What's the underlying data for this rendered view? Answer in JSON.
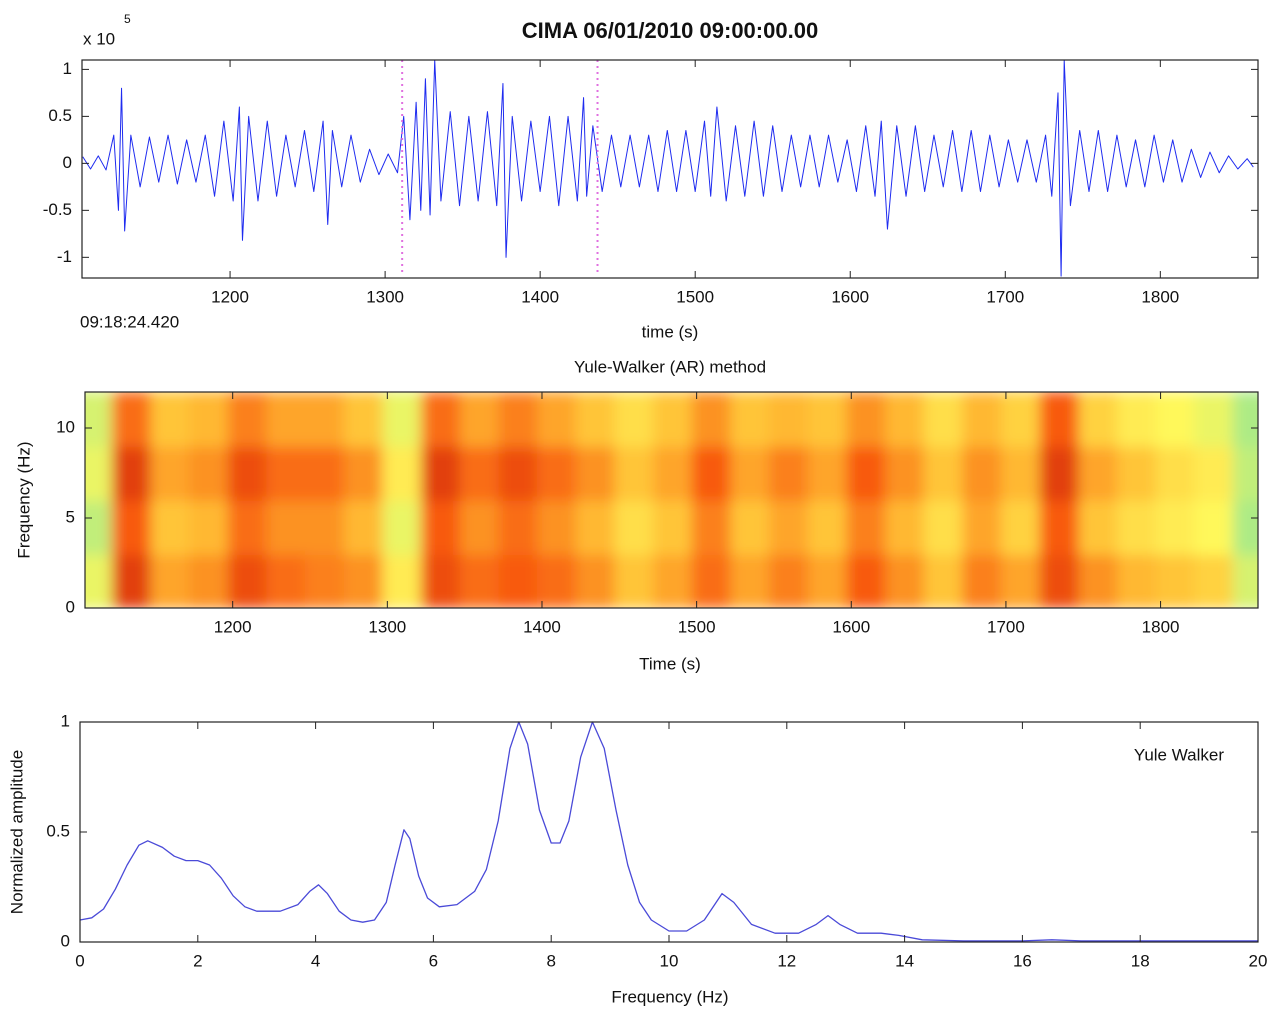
{
  "chart_data": [
    {
      "type": "line",
      "title": "CIMA 06/01/2010  09:00:00.00",
      "y_multiplier": {
        "base": "x 10",
        "power": "5"
      },
      "start_time": "09:18:24.420",
      "xlabel": "time (s)",
      "color": "#1f2cf0",
      "xlim": [
        1104.5,
        1863
      ],
      "ylim": [
        -1.22,
        1.1
      ],
      "xticks": [
        1200,
        1300,
        1400,
        1500,
        1600,
        1700,
        1800
      ],
      "yticks": [
        -1,
        -0.5,
        0,
        0.5,
        1
      ],
      "markers": [
        1311,
        1437
      ],
      "marker_color": "#e070e0",
      "x": [
        1105,
        1110,
        1115,
        1120,
        1125,
        1128,
        1130,
        1132,
        1136,
        1142,
        1148,
        1154,
        1160,
        1166,
        1172,
        1178,
        1184,
        1190,
        1196,
        1202,
        1206,
        1208,
        1212,
        1218,
        1224,
        1230,
        1236,
        1242,
        1248,
        1254,
        1260,
        1263,
        1266,
        1272,
        1278,
        1284,
        1290,
        1296,
        1302,
        1308,
        1312,
        1316,
        1320,
        1323,
        1326,
        1329,
        1332,
        1336,
        1342,
        1348,
        1354,
        1360,
        1366,
        1372,
        1376,
        1378,
        1382,
        1388,
        1394,
        1400,
        1406,
        1412,
        1418,
        1424,
        1428,
        1430,
        1434,
        1440,
        1446,
        1452,
        1458,
        1464,
        1470,
        1476,
        1482,
        1488,
        1494,
        1500,
        1506,
        1510,
        1514,
        1520,
        1526,
        1532,
        1538,
        1544,
        1550,
        1556,
        1562,
        1568,
        1574,
        1580,
        1586,
        1592,
        1598,
        1604,
        1610,
        1616,
        1620,
        1624,
        1630,
        1636,
        1642,
        1648,
        1654,
        1660,
        1666,
        1672,
        1678,
        1684,
        1690,
        1696,
        1702,
        1708,
        1714,
        1720,
        1726,
        1730,
        1734,
        1736,
        1738,
        1742,
        1748,
        1754,
        1760,
        1766,
        1772,
        1778,
        1784,
        1790,
        1796,
        1802,
        1808,
        1814,
        1820,
        1826,
        1832,
        1838,
        1844,
        1850,
        1856,
        1860
      ],
      "values": [
        0.07,
        -0.06,
        0.08,
        -0.07,
        0.3,
        -0.5,
        0.8,
        -0.72,
        0.3,
        -0.25,
        0.28,
        -0.2,
        0.3,
        -0.22,
        0.25,
        -0.2,
        0.3,
        -0.35,
        0.45,
        -0.4,
        0.6,
        -0.82,
        0.5,
        -0.4,
        0.45,
        -0.35,
        0.3,
        -0.25,
        0.35,
        -0.3,
        0.45,
        -0.65,
        0.35,
        -0.25,
        0.3,
        -0.2,
        0.15,
        -0.12,
        0.1,
        -0.1,
        0.5,
        -0.6,
        0.65,
        -0.5,
        0.9,
        -0.55,
        1.1,
        -0.4,
        0.55,
        -0.45,
        0.5,
        -0.4,
        0.55,
        -0.45,
        0.85,
        -1.0,
        0.5,
        -0.4,
        0.45,
        -0.3,
        0.5,
        -0.45,
        0.5,
        -0.4,
        0.7,
        -0.35,
        0.4,
        -0.3,
        0.3,
        -0.25,
        0.3,
        -0.25,
        0.3,
        -0.3,
        0.35,
        -0.3,
        0.35,
        -0.3,
        0.45,
        -0.35,
        0.6,
        -0.4,
        0.4,
        -0.35,
        0.45,
        -0.35,
        0.4,
        -0.3,
        0.3,
        -0.25,
        0.3,
        -0.25,
        0.3,
        -0.2,
        0.25,
        -0.3,
        0.4,
        -0.35,
        0.45,
        -0.7,
        0.4,
        -0.35,
        0.4,
        -0.3,
        0.3,
        -0.25,
        0.35,
        -0.3,
        0.35,
        -0.3,
        0.3,
        -0.25,
        0.25,
        -0.2,
        0.25,
        -0.2,
        0.3,
        -0.35,
        0.75,
        -1.2,
        1.1,
        -0.45,
        0.35,
        -0.3,
        0.35,
        -0.3,
        0.3,
        -0.25,
        0.25,
        -0.25,
        0.3,
        -0.2,
        0.25,
        -0.2,
        0.15,
        -0.15,
        0.12,
        -0.1,
        0.08,
        -0.06,
        0.05,
        -0.04
      ]
    },
    {
      "type": "heatmap",
      "title": "Yule-Walker (AR) method",
      "xlabel": "Time (s)",
      "ylabel": "Frequency (Hz)",
      "xlim": [
        1104.5,
        1863
      ],
      "ylim": [
        0,
        12
      ],
      "xticks": [
        1200,
        1300,
        1400,
        1500,
        1600,
        1700,
        1800
      ],
      "yticks": [
        0,
        5,
        10
      ],
      "colormap": [
        "#98e890",
        "#fff85a",
        "#ffb830",
        "#f85a10",
        "#c01808"
      ],
      "x": [
        1110,
        1135,
        1160,
        1185,
        1210,
        1235,
        1260,
        1285,
        1310,
        1335,
        1360,
        1385,
        1410,
        1435,
        1460,
        1485,
        1510,
        1535,
        1560,
        1585,
        1610,
        1635,
        1660,
        1685,
        1710,
        1735,
        1760,
        1785,
        1810,
        1835,
        1860
      ],
      "y": [
        1.5,
        4.5,
        7.5,
        10.5
      ],
      "z": [
        [
          0.2,
          0.85,
          0.55,
          0.6,
          0.8,
          0.7,
          0.65,
          0.6,
          0.3,
          0.8,
          0.7,
          0.75,
          0.7,
          0.6,
          0.45,
          0.55,
          0.7,
          0.55,
          0.65,
          0.55,
          0.75,
          0.6,
          0.45,
          0.65,
          0.55,
          0.8,
          0.6,
          0.5,
          0.45,
          0.4,
          0.15
        ],
        [
          0.1,
          0.75,
          0.45,
          0.5,
          0.7,
          0.6,
          0.6,
          0.5,
          0.2,
          0.75,
          0.6,
          0.7,
          0.6,
          0.5,
          0.35,
          0.45,
          0.65,
          0.45,
          0.55,
          0.45,
          0.65,
          0.5,
          0.35,
          0.55,
          0.4,
          0.75,
          0.45,
          0.35,
          0.3,
          0.25,
          0.05
        ],
        [
          0.2,
          0.85,
          0.55,
          0.6,
          0.8,
          0.7,
          0.7,
          0.6,
          0.3,
          0.85,
          0.7,
          0.8,
          0.7,
          0.6,
          0.45,
          0.55,
          0.75,
          0.55,
          0.65,
          0.55,
          0.75,
          0.6,
          0.45,
          0.6,
          0.5,
          0.85,
          0.55,
          0.45,
          0.35,
          0.3,
          0.1
        ],
        [
          0.15,
          0.7,
          0.45,
          0.5,
          0.65,
          0.55,
          0.55,
          0.45,
          0.2,
          0.7,
          0.55,
          0.65,
          0.55,
          0.45,
          0.35,
          0.45,
          0.6,
          0.45,
          0.5,
          0.45,
          0.6,
          0.5,
          0.35,
          0.5,
          0.4,
          0.75,
          0.4,
          0.3,
          0.25,
          0.2,
          0.05
        ]
      ]
    },
    {
      "type": "line",
      "xlabel": "Frequency (Hz)",
      "ylabel": "Normalized amplitude",
      "xlim": [
        0,
        20
      ],
      "ylim": [
        0,
        1
      ],
      "xticks": [
        0,
        2,
        4,
        6,
        8,
        10,
        12,
        14,
        16,
        18,
        20
      ],
      "yticks": [
        0,
        0.5,
        1
      ],
      "legend": "upper right",
      "x": [
        0,
        0.2,
        0.4,
        0.6,
        0.8,
        1.0,
        1.15,
        1.4,
        1.6,
        1.8,
        2.0,
        2.2,
        2.4,
        2.6,
        2.8,
        3.0,
        3.4,
        3.7,
        3.9,
        4.05,
        4.2,
        4.4,
        4.6,
        4.8,
        5.0,
        5.2,
        5.35,
        5.5,
        5.6,
        5.75,
        5.9,
        6.1,
        6.4,
        6.7,
        6.9,
        7.1,
        7.3,
        7.45,
        7.6,
        7.8,
        8.0,
        8.15,
        8.3,
        8.5,
        8.7,
        8.9,
        9.1,
        9.3,
        9.5,
        9.7,
        10.0,
        10.3,
        10.6,
        10.9,
        11.1,
        11.4,
        11.8,
        12.2,
        12.5,
        12.7,
        12.9,
        13.2,
        13.6,
        13.9,
        14.3,
        15,
        16,
        16.5,
        17,
        18,
        20
      ],
      "series": [
        {
          "name": "Yule Walker",
          "color": "#4a4ad8",
          "values": [
            0.1,
            0.11,
            0.15,
            0.24,
            0.35,
            0.44,
            0.46,
            0.43,
            0.39,
            0.37,
            0.37,
            0.35,
            0.29,
            0.21,
            0.16,
            0.14,
            0.14,
            0.17,
            0.23,
            0.26,
            0.22,
            0.14,
            0.1,
            0.09,
            0.1,
            0.18,
            0.35,
            0.51,
            0.47,
            0.3,
            0.2,
            0.16,
            0.17,
            0.23,
            0.33,
            0.55,
            0.88,
            1.0,
            0.9,
            0.6,
            0.45,
            0.45,
            0.55,
            0.84,
            1.0,
            0.88,
            0.6,
            0.35,
            0.18,
            0.1,
            0.05,
            0.05,
            0.1,
            0.22,
            0.18,
            0.08,
            0.04,
            0.04,
            0.08,
            0.12,
            0.08,
            0.04,
            0.04,
            0.03,
            0.01,
            0.005,
            0.005,
            0.01,
            0.005,
            0.005,
            0.005
          ]
        }
      ]
    }
  ]
}
